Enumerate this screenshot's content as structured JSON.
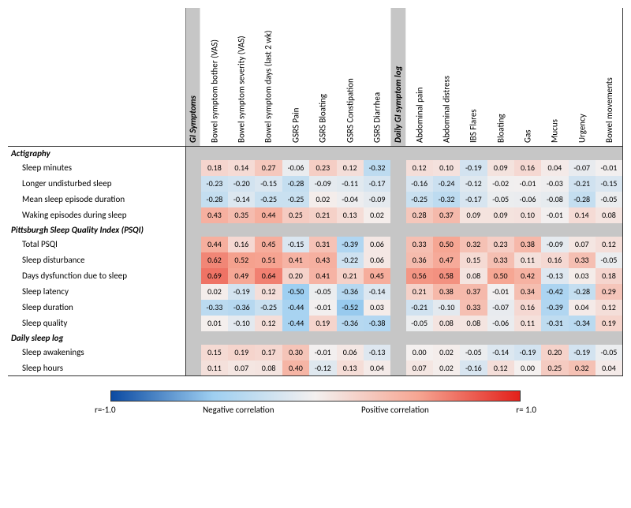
{
  "columnGroups": [
    {
      "header": "GI Symptoms",
      "columns": [
        "Bowel symptom bother (VAS)",
        "Bowel symptom severity (VAS)",
        "Bowel symptom days (last 2 wk)",
        "GSRS Pain",
        "GSRS Bloating",
        "GSRS Constipation",
        "GSRS Diarrhea"
      ]
    },
    {
      "header": "Daily GI symptom log",
      "columns": [
        "Abdominal pain",
        "Abdominal distress",
        "IBS Flares",
        "Bloating",
        "Gas",
        "Mucus",
        "Urgency",
        "Bowel movements"
      ]
    }
  ],
  "rowSections": [
    {
      "header": "Actigraphy",
      "rows": [
        {
          "label": "Sleep minutes",
          "g1": [
            0.18,
            0.14,
            0.27,
            -0.06,
            0.23,
            0.12,
            -0.32
          ],
          "g2": [
            0.12,
            0.1,
            -0.19,
            0.09,
            0.16,
            0.04,
            -0.07,
            -0.01
          ]
        },
        {
          "label": "Longer undisturbed sleep",
          "g1": [
            -0.23,
            -0.2,
            -0.15,
            -0.28,
            -0.09,
            -0.11,
            -0.17
          ],
          "g2": [
            -0.16,
            -0.24,
            -0.12,
            -0.02,
            -0.01,
            -0.03,
            -0.21,
            -0.15
          ]
        },
        {
          "label": "Mean sleep episode duration",
          "g1": [
            -0.28,
            -0.14,
            -0.25,
            -0.25,
            0.02,
            -0.04,
            -0.09
          ],
          "g2": [
            -0.25,
            -0.32,
            -0.17,
            -0.05,
            -0.06,
            -0.08,
            -0.28,
            -0.05
          ]
        },
        {
          "label": "Waking episodes during sleep",
          "g1": [
            0.43,
            0.35,
            0.44,
            0.25,
            0.21,
            0.13,
            0.02
          ],
          "g2": [
            0.28,
            0.37,
            0.09,
            0.09,
            0.1,
            -0.01,
            0.14,
            0.08
          ]
        }
      ]
    },
    {
      "header": "Pittsburgh Sleep Quality Index (PSQI)",
      "rows": [
        {
          "label": "Total PSQI",
          "g1": [
            0.44,
            0.16,
            0.45,
            -0.15,
            0.31,
            -0.39,
            0.06
          ],
          "g2": [
            0.33,
            0.5,
            0.32,
            0.23,
            0.38,
            -0.09,
            0.07,
            0.12
          ]
        },
        {
          "label": "Sleep disturbance",
          "g1": [
            0.62,
            0.52,
            0.51,
            0.41,
            0.43,
            -0.22,
            0.06
          ],
          "g2": [
            0.36,
            0.47,
            0.15,
            0.33,
            0.11,
            0.16,
            0.33,
            -0.05
          ]
        },
        {
          "label": "Days dysfunction due to sleep",
          "g1": [
            0.69,
            0.49,
            0.64,
            0.2,
            0.41,
            0.21,
            0.45
          ],
          "g2": [
            0.56,
            0.58,
            0.08,
            0.5,
            0.42,
            -0.13,
            0.03,
            0.18
          ]
        },
        {
          "label": "Sleep latency",
          "g1": [
            0.02,
            -0.19,
            0.12,
            -0.5,
            -0.05,
            -0.36,
            -0.14
          ],
          "g2": [
            0.21,
            0.38,
            0.37,
            -0.01,
            0.34,
            -0.42,
            -0.28,
            0.29
          ]
        },
        {
          "label": "Sleep duration",
          "g1": [
            -0.33,
            -0.36,
            -0.25,
            -0.44,
            -0.01,
            -0.52,
            0.03
          ],
          "g2": [
            -0.21,
            -0.1,
            0.33,
            -0.07,
            0.16,
            -0.39,
            0.04,
            0.12
          ]
        },
        {
          "label": "Sleep quality",
          "g1": [
            0.01,
            -0.1,
            0.12,
            -0.44,
            0.19,
            -0.36,
            -0.38
          ],
          "g2": [
            -0.05,
            0.08,
            0.08,
            -0.06,
            0.11,
            -0.31,
            -0.34,
            0.19
          ]
        }
      ]
    },
    {
      "header": "Daily sleep log",
      "rows": [
        {
          "label": "Sleep awakenings",
          "g1": [
            0.15,
            0.19,
            0.17,
            0.3,
            -0.01,
            0.06,
            -0.13
          ],
          "g2": [
            0.0,
            0.02,
            -0.05,
            -0.14,
            -0.19,
            0.2,
            -0.19,
            -0.05
          ]
        },
        {
          "label": "Sleep hours",
          "g1": [
            0.11,
            0.07,
            0.08,
            0.4,
            -0.12,
            0.13,
            0.04
          ],
          "g2": [
            0.07,
            0.02,
            -0.16,
            0.12,
            0.0,
            0.25,
            0.32,
            0.04
          ]
        }
      ]
    }
  ],
  "colorScale": {
    "min": -1.0,
    "max": 1.0,
    "negFar": "#0b4aa2",
    "negMid": "#9ecff1",
    "zero": "#f4f0ef",
    "posMid": "#f6a693",
    "posFar": "#e3201a"
  },
  "gapColor": "#c6c6c6",
  "borderColor": "#333333",
  "legend": {
    "leftTick": "r=-1.0",
    "rightTick": "r= 1.0",
    "negLabel": "Negative correlation",
    "posLabel": "Positive correlation"
  }
}
